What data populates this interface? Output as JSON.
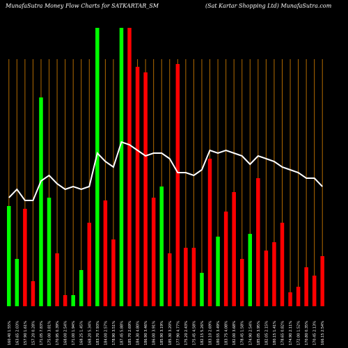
{
  "header": {
    "left": "MunafaSutra  Money Flow  Charts for SATKARTAR_SM",
    "right": "(Sat Kartar Shopping Ltd) MunafaSutra.com"
  },
  "colors": {
    "background": "#000000",
    "up": "#00ff00",
    "down": "#ff0000",
    "line": "#ffffff",
    "grid": "#b36b00",
    "text": "#ffffff"
  },
  "chart_data": {
    "type": "bar",
    "title": "MunafaSutra  Money Flow  Charts for SATKARTAR_SM",
    "subtitle": "(Sat Kartar Shopping Ltd) MunafaSutra.com",
    "ylim": [
      0,
      100
    ],
    "categories": [
      "160.40 1.55%",
      "163.65 2.03%",
      "157.90 1.61%",
      "157.20 0.28%",
      "171.05 7.83%",
      "175.00 3.81%",
      "170.95 0.39%",
      "168.00 2.54%",
      "171.00 1.94%",
      "168.25 1.45%",
      "168.20 5.34%",
      "183.70 7.93%",
      "184.00 2.57%",
      "178.90 3.51%",
      "187.45 5.88%",
      "185.70 2.69%",
      "184.30 4.80%",
      "186.90 3.46%",
      "186.00 3.91%",
      "185.90 3.19%",
      "185.30 3.20%",
      "177.90 4.77%",
      "175.20 2.43%",
      "175.45 4.58%",
      "182.15 5.26%",
      "183.10 2.69%",
      "180.55 3.49%",
      "183.75 4.08%",
      "182.00 3.68%",
      "178.45 1.58%",
      "174.90 2.54%",
      "185.05 3.95%",
      "182.05 2.15%",
      "180.15 1.41%",
      "178.65 0.82%",
      "174.90 2.11%",
      "172.00 1.52%",
      "170.80 0.35%",
      "170.45 2.13%",
      "166.15 2.54%"
    ],
    "series": [
      {
        "direction": [
          "up",
          "up",
          "down",
          "down",
          "up",
          "up",
          "down",
          "down",
          "up",
          "up",
          "down",
          "up",
          "down",
          "down",
          "up",
          "down",
          "down",
          "down",
          "down",
          "up",
          "down",
          "down",
          "down",
          "down",
          "up",
          "down",
          "up",
          "down",
          "down",
          "down",
          "up",
          "down",
          "down",
          "down",
          "down",
          "down",
          "down",
          "down",
          "down",
          "down"
        ],
        "values": [
          36,
          17,
          35,
          9,
          75,
          39,
          19,
          4,
          4,
          13,
          30,
          100,
          38,
          24,
          100,
          100,
          86,
          84,
          39,
          43,
          19,
          87,
          21,
          21,
          12,
          53,
          25,
          34,
          41,
          17,
          26,
          46,
          20,
          23,
          30,
          5,
          7,
          14,
          11,
          18
        ]
      },
      {
        "values": [
          39,
          42,
          38,
          38,
          45,
          47,
          44,
          42,
          43,
          42,
          43,
          55,
          52,
          50,
          59,
          58,
          56,
          54,
          55,
          55,
          53,
          48,
          48,
          47,
          49,
          56,
          55,
          56,
          55,
          54,
          51,
          54,
          53,
          52,
          50,
          49,
          48,
          46,
          46,
          43
        ]
      }
    ]
  }
}
